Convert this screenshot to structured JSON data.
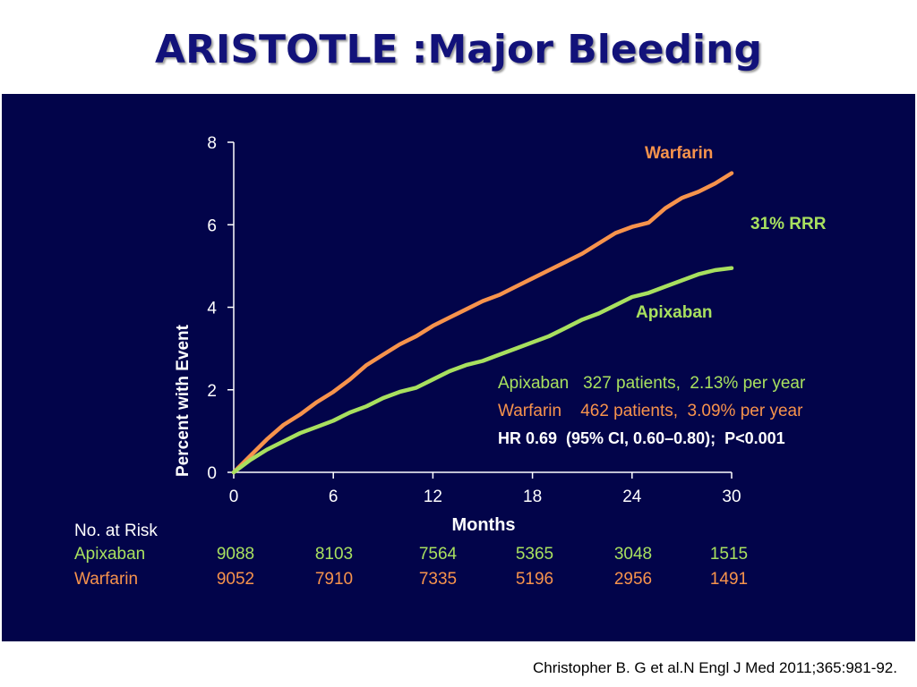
{
  "slide": {
    "title": "ARISTOTLE :Major Bleeding",
    "citation": "Christopher B. G et al.N Engl J Med 2011;365:981-92."
  },
  "colors": {
    "panel_background": "#02044a",
    "apixaban": "#a8e05f",
    "warfarin": "#f7934c",
    "text_white": "#ffffff"
  },
  "chart_data": {
    "type": "line",
    "xlabel": "Months",
    "ylabel": "Percent with Event",
    "xlim": [
      0,
      30
    ],
    "ylim": [
      0,
      8
    ],
    "xticks": [
      0,
      6,
      12,
      18,
      24,
      30
    ],
    "yticks": [
      0,
      2,
      4,
      6,
      8
    ],
    "grid": false,
    "series": [
      {
        "name": "Warfarin",
        "color": "#f7934c",
        "x": [
          0,
          1,
          2,
          3,
          4,
          5,
          6,
          7,
          8,
          9,
          10,
          11,
          12,
          13,
          14,
          15,
          16,
          17,
          18,
          19,
          20,
          21,
          22,
          23,
          24,
          25,
          26,
          27,
          28,
          29,
          30
        ],
        "y": [
          0,
          0.4,
          0.8,
          1.15,
          1.4,
          1.7,
          1.95,
          2.25,
          2.6,
          2.85,
          3.1,
          3.3,
          3.55,
          3.75,
          3.95,
          4.15,
          4.3,
          4.5,
          4.7,
          4.9,
          5.1,
          5.3,
          5.55,
          5.8,
          5.95,
          6.05,
          6.4,
          6.65,
          6.8,
          7.0,
          7.25
        ]
      },
      {
        "name": "Apixaban",
        "color": "#a8e05f",
        "x": [
          0,
          1,
          2,
          3,
          4,
          5,
          6,
          7,
          8,
          9,
          10,
          11,
          12,
          13,
          14,
          15,
          16,
          17,
          18,
          19,
          20,
          21,
          22,
          23,
          24,
          25,
          26,
          27,
          28,
          29,
          30
        ],
        "y": [
          0,
          0.3,
          0.55,
          0.75,
          0.95,
          1.1,
          1.25,
          1.45,
          1.6,
          1.8,
          1.95,
          2.05,
          2.25,
          2.45,
          2.6,
          2.7,
          2.85,
          3.0,
          3.15,
          3.3,
          3.5,
          3.7,
          3.85,
          4.05,
          4.25,
          4.35,
          4.5,
          4.65,
          4.8,
          4.9,
          4.95
        ]
      }
    ],
    "annotations": {
      "warfarin_label": "Warfarin",
      "apixaban_label": "Apixaban",
      "rrr_label": "31% RRR",
      "stat_apixaban": "Apixaban   327 patients,  2.13% per year",
      "stat_warfarin": "Warfarin    462 patients,  3.09% per year",
      "stat_hr": "HR 0.69  (95% CI, 0.60–0.80);  P<0.001"
    }
  },
  "risk_table": {
    "header": "No. at Risk",
    "rows": [
      {
        "label": "Apixaban",
        "values": [
          "9088",
          "8103",
          "7564",
          "5365",
          "3048",
          "1515"
        ]
      },
      {
        "label": "Warfarin",
        "values": [
          "9052",
          "7910",
          "7335",
          "5196",
          "2956",
          "1491"
        ]
      }
    ]
  }
}
